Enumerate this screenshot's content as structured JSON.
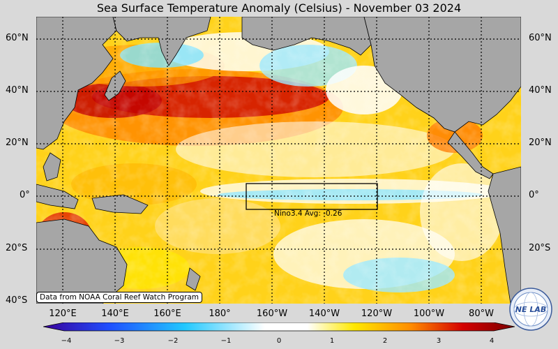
{
  "title": "Sea Surface Temperature Anomaly (Celsius) - November 03 2024",
  "lat_labels": [
    "60°N",
    "40°N",
    "20°N",
    "0°",
    "20°S",
    "40°S"
  ],
  "lon_labels": [
    "120°E",
    "140°E",
    "160°E",
    "180°",
    "160°W",
    "140°W",
    "120°W",
    "100°W",
    "80°W"
  ],
  "nino_box": {
    "label": "Nino3.4 Avg: -0.26"
  },
  "credit": "Data from NOAA Coral Reef Watch Program",
  "colorbar": {
    "ticks": [
      "−4",
      "−3",
      "−2",
      "−1",
      "0",
      "1",
      "2",
      "3",
      "4"
    ],
    "min": -4,
    "max": 4,
    "colors": [
      "#3a009a",
      "#1f4fff",
      "#22c8ff",
      "#ffffff",
      "#ffe800",
      "#ff8c00",
      "#d40000",
      "#7a0000"
    ]
  },
  "logo": {
    "text": "NE LAB"
  }
}
